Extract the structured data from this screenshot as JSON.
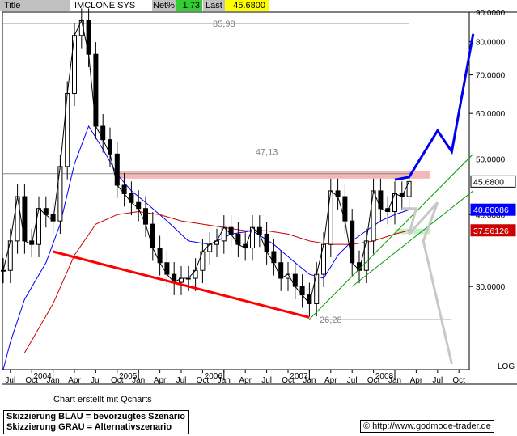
{
  "header": {
    "title_label": "Title",
    "name": "IMCLONE SYS INC",
    "net_label": "Net%",
    "net_value": "1.73",
    "last_label": "Last",
    "last_value": "45.6800"
  },
  "footer": {
    "credit": "Chart erstellt mit Qcharts",
    "legend_line1": "Skizzierung BLAU = bevorzugtes Szenario",
    "legend_line2": "Skizzierung GRAU = Alternativszenario",
    "copyright_symbol": "©",
    "copyright": "http://www.godmode-trader.de"
  },
  "colors": {
    "header_bg": "#c0c0c0",
    "net_bg": "#33cc33",
    "last_bg": "#ffff00",
    "price": "#000000",
    "ma_blue": "#0000ff",
    "ma_red": "#cc0000",
    "trend_red": "#ff0000",
    "trend_green": "#009900",
    "resistance_zone": "#f4b8b8",
    "support_zone": "#c8f0c8",
    "scenario_blue": "#0000ee",
    "scenario_grey": "#c8c8c8"
  },
  "chart_data": {
    "type": "line",
    "scale": "log",
    "ylim": [
      21.5,
      90
    ],
    "yticks": [
      30,
      40,
      50,
      60,
      70,
      80,
      90
    ],
    "ytick_labels": [
      "30.0000",
      "40.0000",
      "50.0000",
      "60.0000",
      "70.0000",
      "80.0000",
      "90.0000"
    ],
    "axis_scale_label": "LOG",
    "x_month_labels": [
      "Jul",
      "Oct",
      "Jan",
      "Apr",
      "Jul",
      "Oct",
      "Jan",
      "Apr",
      "Jul",
      "Oct",
      "Jan",
      "Apr",
      "Jul",
      "Oct",
      "Jan",
      "Apr",
      "Jul",
      "Oct",
      "Jan",
      "Apr",
      "Jul",
      "Oct"
    ],
    "x_month_dates": [
      "2003-07",
      "2003-10",
      "2004-01",
      "2004-04",
      "2004-07",
      "2004-10",
      "2005-01",
      "2005-04",
      "2005-07",
      "2005-10",
      "2006-01",
      "2006-04",
      "2006-07",
      "2006-10",
      "2007-01",
      "2007-04",
      "2007-07",
      "2007-10",
      "2008-01",
      "2008-04",
      "2008-07",
      "2008-10"
    ],
    "x_year_labels": [
      "2004",
      "2005",
      "2006",
      "2007",
      "2008"
    ],
    "x_year_dates": [
      "2004-01",
      "2005-01",
      "2006-01",
      "2007-01",
      "2008-01"
    ],
    "annotations": [
      {
        "text": "85,98",
        "date": "2006-01",
        "y": 85.98
      },
      {
        "text": "47,13",
        "date": "2006-07",
        "y": 51.5
      },
      {
        "text": "26,28",
        "date": "2007-04",
        "y": 26.28
      }
    ],
    "price_boxes": [
      {
        "text": "45.6800",
        "y": 45.68,
        "bg": "#ffffff",
        "fg": "#000000"
      },
      {
        "text": "40.80086",
        "y": 40.80086,
        "bg": "#0000ff",
        "fg": "#ffffff"
      },
      {
        "text": "37.56126",
        "y": 37.56126,
        "bg": "#cc0000",
        "fg": "#ffffff"
      }
    ],
    "series": [
      {
        "name": "",
        "style": "ohlc",
        "x": [
          "2003-06",
          "2003-07",
          "2003-08",
          "2003-09",
          "2003-10",
          "2003-11",
          "2003-12",
          "2004-01",
          "2004-02",
          "2004-03",
          "2004-04",
          "2004-05",
          "2004-06",
          "2004-07",
          "2004-08",
          "2004-09",
          "2004-10",
          "2004-11",
          "2004-12",
          "2005-01",
          "2005-02",
          "2005-03",
          "2005-04",
          "2005-05",
          "2005-06",
          "2005-07",
          "2005-08",
          "2005-09",
          "2005-10",
          "2005-11",
          "2005-12",
          "2006-01",
          "2006-02",
          "2006-03",
          "2006-04",
          "2006-05",
          "2006-06",
          "2006-07",
          "2006-08",
          "2006-09",
          "2006-10",
          "2006-11",
          "2006-12",
          "2007-01",
          "2007-02",
          "2007-03",
          "2007-04",
          "2007-05",
          "2007-06",
          "2007-07",
          "2007-08",
          "2007-09",
          "2007-10",
          "2007-11",
          "2007-12",
          "2008-01",
          "2008-02",
          "2008-03"
        ],
        "y": [
          32.0,
          36.0,
          43.0,
          36.0,
          35.5,
          41.0,
          40.0,
          39.0,
          48.5,
          65.0,
          82.0,
          87.0,
          76.0,
          57.0,
          54.0,
          51.0,
          45.0,
          43.5,
          42.0,
          41.0,
          38.5,
          35.0,
          33.0,
          31.5,
          30.5,
          31.0,
          31.0,
          32.0,
          34.5,
          35.5,
          36.0,
          38.0,
          37.0,
          35.5,
          35.0,
          38.0,
          37.0,
          34.5,
          33.0,
          31.0,
          31.5,
          30.0,
          29.0,
          28.0,
          31.5,
          35.5,
          44.0,
          43.0,
          39.0,
          33.0,
          32.0,
          36.0,
          44.0,
          41.0,
          40.5,
          43.5,
          43.0,
          45.68
        ]
      },
      {
        "name": "",
        "style": "line",
        "color_key": "ma_blue",
        "x": [
          "2003-06",
          "2003-07",
          "2003-09",
          "2003-12",
          "2004-02",
          "2004-04",
          "2004-06",
          "2004-08",
          "2004-10",
          "2004-12",
          "2005-02",
          "2005-05",
          "2005-08",
          "2005-11",
          "2006-02",
          "2006-05",
          "2006-08",
          "2006-11",
          "2007-01",
          "2007-03",
          "2007-05",
          "2007-07",
          "2007-09",
          "2007-11",
          "2008-01",
          "2008-03"
        ],
        "y": [
          21.5,
          24.0,
          28.5,
          33.0,
          38.5,
          49.0,
          57.0,
          52.0,
          47.0,
          44.0,
          42.0,
          39.0,
          36.0,
          35.5,
          37.0,
          37.5,
          35.5,
          33.0,
          31.5,
          31.0,
          34.0,
          36.0,
          37.5,
          39.0,
          40.0,
          40.8
        ]
      },
      {
        "name": "",
        "style": "line",
        "color_key": "ma_red",
        "x": [
          "2003-09",
          "2004-01",
          "2004-04",
          "2004-07",
          "2004-10",
          "2005-01",
          "2005-04",
          "2005-07",
          "2005-10",
          "2006-01",
          "2006-04",
          "2006-07",
          "2006-10",
          "2007-01",
          "2007-04",
          "2007-07",
          "2007-10",
          "2008-01",
          "2008-03"
        ],
        "y": [
          23.0,
          28.0,
          34.0,
          38.5,
          40.0,
          40.5,
          40.0,
          39.0,
          38.5,
          38.0,
          37.5,
          37.5,
          37.0,
          36.0,
          35.5,
          35.5,
          36.0,
          37.0,
          37.56
        ]
      }
    ],
    "overlays": {
      "resistance_line": {
        "x0": "2003-06",
        "x1": "2008-03",
        "y": 47.13
      },
      "resistance_zone": {
        "x0": "2004-10",
        "x1": "2008-06",
        "y_low": 46.2,
        "y_high": 47.6
      },
      "top_line": {
        "x0": "2003-06",
        "x1": "2008-03",
        "y": 85.98
      },
      "bottom_line": {
        "x0": "2007-03",
        "x1": "2008-09",
        "y": 26.28
      },
      "red_downtrend": {
        "x": [
          "2004-01",
          "2007-01"
        ],
        "y": [
          34.5,
          26.5
        ]
      },
      "green_uptrend_1": {
        "x": [
          "2007-01",
          "2008-12"
        ],
        "y": [
          26.3,
          51.0
        ]
      },
      "green_uptrend_2": {
        "x": [
          "2007-07",
          "2008-12"
        ],
        "y": [
          30.0,
          44.0
        ]
      },
      "support_zone": {
        "x0": "2008-01",
        "x1": "2008-06",
        "y_low": 37.0,
        "y_high": 37.8
      },
      "blue_scenario": {
        "x": [
          "2008-01",
          "2008-03",
          "2008-07",
          "2008-09",
          "2008-12"
        ],
        "y": [
          46.0,
          46.5,
          56.0,
          51.5,
          82.5
        ]
      },
      "grey_scenario": {
        "x": [
          "2008-02",
          "2008-04",
          "2008-03",
          "2008-07",
          "2008-05",
          "2008-09"
        ],
        "y": [
          41.0,
          41.0,
          37.0,
          42.0,
          36.0,
          22.0
        ]
      }
    }
  }
}
